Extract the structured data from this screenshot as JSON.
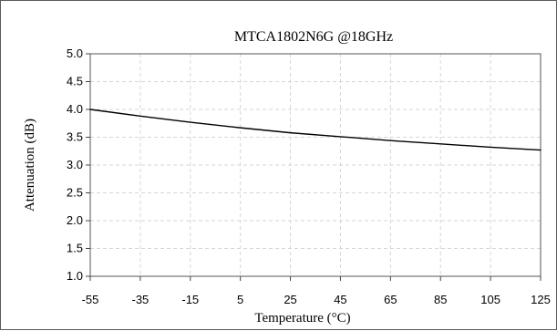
{
  "chart_data": {
    "type": "line",
    "title": "MTCA1802N6G @18GHz",
    "xlabel": "Temperature (°C)",
    "ylabel": "Attenuation (dB)",
    "x_ticks": [
      "-55",
      "-35",
      "-15",
      "5",
      "25",
      "45",
      "65",
      "85",
      "105",
      "125"
    ],
    "y_ticks": [
      "1.0",
      "1.5",
      "2.0",
      "2.5",
      "3.0",
      "3.5",
      "4.0",
      "4.5",
      "5.0"
    ],
    "xlim": [
      -55,
      125
    ],
    "ylim": [
      1.0,
      5.0
    ],
    "grid": true,
    "series": [
      {
        "x": [
          -55,
          -35,
          -15,
          5,
          25,
          45,
          65,
          85,
          105,
          125
        ],
        "y": [
          4.0,
          3.88,
          3.77,
          3.67,
          3.58,
          3.51,
          3.44,
          3.38,
          3.32,
          3.27
        ],
        "color": "#000000"
      }
    ]
  }
}
